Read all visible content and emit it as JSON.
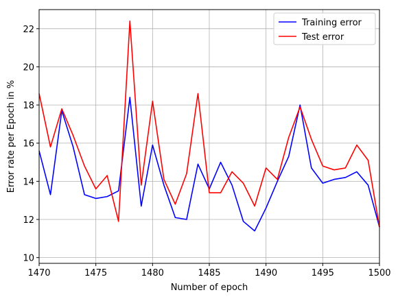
{
  "chart_data": {
    "type": "line",
    "xlabel": "Number of epoch",
    "ylabel": "Error rate per Epoch in %",
    "xlim": [
      1470,
      1500
    ],
    "ylim": [
      9.7,
      23.0
    ],
    "xticks": [
      1470,
      1475,
      1480,
      1485,
      1490,
      1495,
      1500
    ],
    "yticks": [
      10,
      12,
      14,
      16,
      18,
      20,
      22
    ],
    "grid": true,
    "legend_position": "top-right",
    "x": [
      1470,
      1471,
      1472,
      1473,
      1474,
      1475,
      1476,
      1477,
      1478,
      1479,
      1480,
      1481,
      1482,
      1483,
      1484,
      1485,
      1486,
      1487,
      1488,
      1489,
      1490,
      1491,
      1492,
      1493,
      1494,
      1495,
      1496,
      1497,
      1498,
      1499,
      1500
    ],
    "series": [
      {
        "name": "Training error",
        "color": "#0000ff",
        "values": [
          15.6,
          13.3,
          17.7,
          15.8,
          13.3,
          13.1,
          13.2,
          13.5,
          18.4,
          12.7,
          15.9,
          13.8,
          12.1,
          12.0,
          14.9,
          13.6,
          15.0,
          13.8,
          11.9,
          11.4,
          12.6,
          14.0,
          15.3,
          18.0,
          14.7,
          13.9,
          14.1,
          14.2,
          14.5,
          13.8,
          11.6
        ]
      },
      {
        "name": "Test error",
        "color": "#ff0000",
        "values": [
          18.6,
          15.8,
          17.8,
          16.4,
          14.8,
          13.6,
          14.3,
          11.9,
          22.4,
          13.8,
          18.2,
          14.1,
          12.8,
          14.4,
          18.6,
          13.4,
          13.4,
          14.5,
          13.9,
          12.7,
          14.7,
          14.1,
          16.3,
          17.9,
          16.2,
          14.8,
          14.6,
          14.7,
          15.9,
          15.1,
          11.6
        ]
      }
    ]
  }
}
